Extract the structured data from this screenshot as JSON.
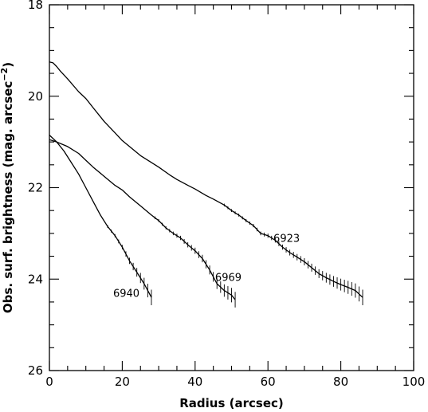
{
  "chart_data": {
    "type": "line",
    "title": "",
    "xlabel": "Radius (arcsec)",
    "ylabel": "Obs. surf. brightness (mag. arcsec",
    "ylabel_sup": "−2",
    "ylabel_close": ")",
    "xlim": [
      0,
      100
    ],
    "ylim": [
      26,
      18
    ],
    "y_inverted": true,
    "x_major_ticks": [
      0,
      20,
      40,
      60,
      80,
      100
    ],
    "x_tick_labels": [
      "0",
      "20",
      "40",
      "60",
      "80",
      "100"
    ],
    "x_minor_step": 5,
    "y_major_ticks": [
      18,
      20,
      22,
      24,
      26
    ],
    "y_tick_labels": [
      "18",
      "20",
      "22",
      "24",
      "26"
    ],
    "y_minor_step": 0.5,
    "grid": false,
    "legend": "none",
    "series": [
      {
        "name": "6923",
        "label_at": [
          61.5,
          23.1
        ],
        "x": [
          0,
          1,
          2,
          3,
          5,
          8,
          10,
          12,
          15,
          18,
          20,
          22,
          25,
          28,
          30,
          33,
          35,
          38,
          40,
          43,
          45,
          48,
          50,
          52,
          54,
          56,
          58,
          60,
          62,
          64,
          66,
          68,
          70,
          72,
          74,
          76,
          78,
          80,
          82,
          84,
          86
        ],
        "y": [
          19.25,
          19.27,
          19.35,
          19.45,
          19.62,
          19.9,
          20.05,
          20.25,
          20.55,
          20.8,
          20.97,
          21.1,
          21.3,
          21.45,
          21.55,
          21.72,
          21.82,
          21.95,
          22.03,
          22.17,
          22.25,
          22.38,
          22.5,
          22.6,
          22.72,
          22.83,
          23.0,
          23.05,
          23.15,
          23.3,
          23.42,
          23.52,
          23.62,
          23.75,
          23.88,
          23.97,
          24.05,
          24.12,
          24.18,
          24.25,
          24.4
        ]
      },
      {
        "name": "6969",
        "label_at": [
          45.5,
          23.95
        ],
        "x": [
          0,
          2,
          5,
          8,
          10,
          12,
          15,
          18,
          20,
          22,
          25,
          28,
          30,
          32,
          34,
          36,
          38,
          40,
          42,
          44,
          46,
          48,
          50,
          51
        ],
        "y": [
          20.95,
          21.0,
          21.1,
          21.25,
          21.4,
          21.55,
          21.75,
          21.95,
          22.05,
          22.2,
          22.4,
          22.6,
          22.72,
          22.88,
          23.0,
          23.1,
          23.25,
          23.38,
          23.55,
          23.8,
          24.1,
          24.25,
          24.35,
          24.45
        ]
      },
      {
        "name": "6940",
        "label_at": [
          17.5,
          24.3
        ],
        "x": [
          0,
          2,
          4,
          6,
          8,
          10,
          12,
          14,
          16,
          18,
          20,
          22,
          24,
          26,
          27,
          28
        ],
        "y": [
          20.85,
          21.0,
          21.2,
          21.45,
          21.7,
          22.0,
          22.3,
          22.6,
          22.85,
          23.05,
          23.3,
          23.6,
          23.85,
          24.1,
          24.25,
          24.4
        ]
      }
    ]
  }
}
